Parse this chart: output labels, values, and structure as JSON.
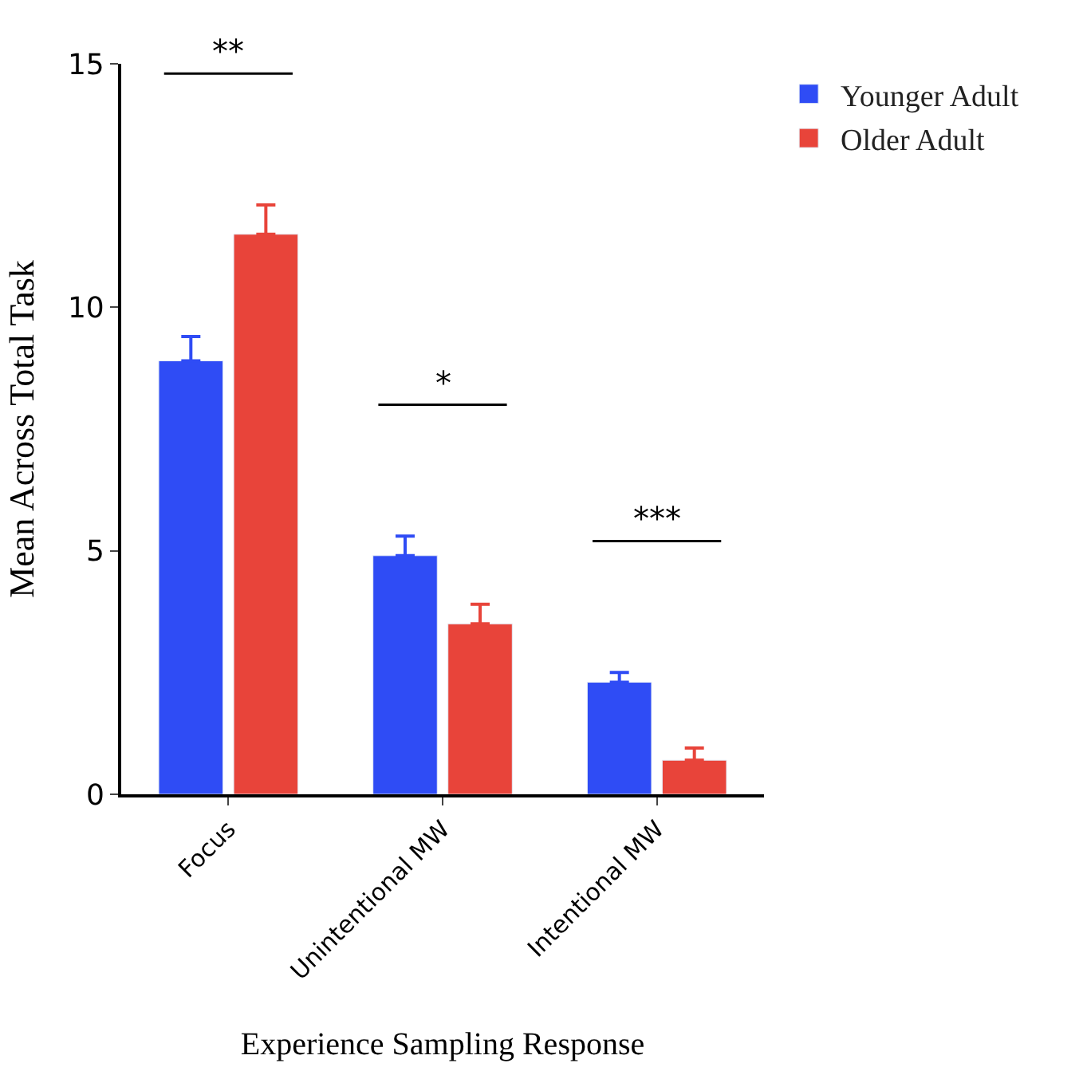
{
  "chart_data": {
    "type": "bar",
    "xlabel": "Experience Sampling Response",
    "ylabel": "Mean Across Total Task",
    "categories": [
      "Focus",
      "Unintentional MW",
      "Intentional MW"
    ],
    "series": [
      {
        "name": "Younger Adult",
        "color": "#2f4cf5",
        "values": [
          8.9,
          4.9,
          2.3
        ],
        "errors": [
          [
            8.9,
            9.4
          ],
          [
            4.9,
            5.3
          ],
          [
            2.3,
            2.5
          ]
        ]
      },
      {
        "name": "Older Adult",
        "color": "#e8443a",
        "values": [
          11.5,
          3.5,
          0.7
        ],
        "errors": [
          [
            11.5,
            12.1
          ],
          [
            3.5,
            3.9
          ],
          [
            0.7,
            0.95
          ]
        ]
      }
    ],
    "ylim": [
      0,
      15
    ],
    "yticks": [
      0,
      5,
      10,
      15
    ],
    "legend": "top right",
    "annotations": [
      "**",
      "*",
      "***"
    ]
  }
}
